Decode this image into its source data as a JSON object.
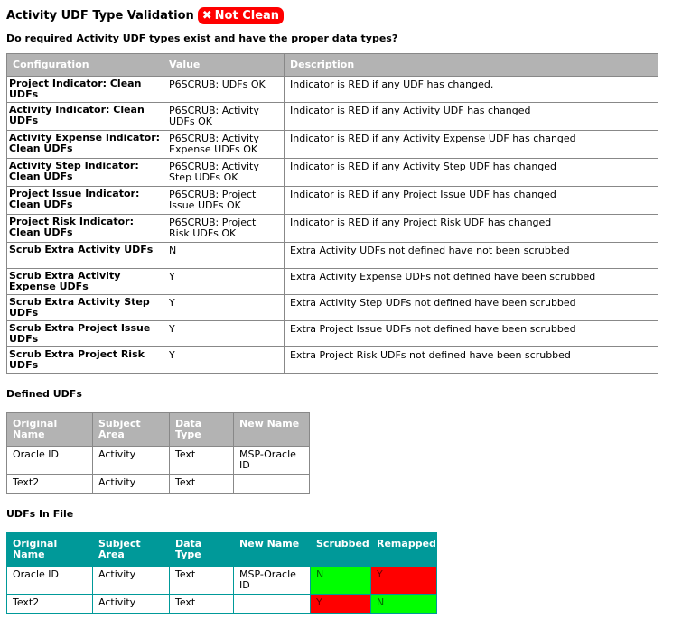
{
  "title": "Activity UDF Type Validation",
  "status_badge": {
    "icon": "x-icon",
    "label": "Not Clean",
    "color": "#ff0000"
  },
  "question": "Do required Activity UDF types exist and have the proper data types?",
  "config_table": {
    "headers": [
      "Configuration",
      "Value",
      "Description"
    ],
    "rows": [
      [
        "Project Indicator: Clean UDFs",
        "P6SCRUB: UDFs OK",
        "Indicator is RED if any UDF has changed."
      ],
      [
        "Activity Indicator: Clean UDFs",
        "P6SCRUB: Activity UDFs OK",
        "Indicator is RED if any Activity UDF has changed"
      ],
      [
        "Activity Expense Indicator: Clean UDFs",
        "P6SCRUB: Activity Expense UDFs OK",
        "Indicator is RED if any Activity Expense UDF has changed"
      ],
      [
        "Activity Step Indicator: Clean UDFs",
        "P6SCRUB: Activity Step UDFs OK",
        "Indicator is RED if any Activity Step UDF has changed"
      ],
      [
        "Project Issue Indicator: Clean UDFs",
        "P6SCRUB: Project Issue UDFs OK",
        "Indicator is RED if any Project Issue UDF has changed"
      ],
      [
        "Project Risk Indicator: Clean UDFs",
        "P6SCRUB: Project Risk UDFs OK",
        "Indicator is RED if any Project Risk UDF has changed"
      ],
      [
        "Scrub Extra Activity UDFs",
        "N",
        "Extra Activity UDFs not defined have not been scrubbed"
      ],
      [
        "Scrub Extra Activity Expense UDFs",
        "Y",
        "Extra Activity Expense UDFs not defined have been scrubbed"
      ],
      [
        "Scrub Extra Activity Step UDFs",
        "Y",
        "Extra Activity Step UDFs not defined have been scrubbed"
      ],
      [
        "Scrub Extra Project Issue UDFs",
        "Y",
        "Extra Project Issue UDFs not defined have been scrubbed"
      ],
      [
        "Scrub Extra Project Risk UDFs",
        "Y",
        "Extra Project Risk UDFs not defined have been scrubbed"
      ]
    ]
  },
  "defined_udfs": {
    "heading": "Defined UDFs",
    "headers": [
      "Original Name",
      "Subject Area",
      "Data Type",
      "New Name"
    ],
    "rows": [
      [
        "Oracle ID",
        "Activity",
        "Text",
        "MSP-Oracle ID"
      ],
      [
        "Text2",
        "Activity",
        "Text",
        ""
      ]
    ]
  },
  "udfs_in_file": {
    "heading": "UDFs In File",
    "headers": [
      "Original Name",
      "Subject Area",
      "Data Type",
      "New Name",
      "Scrubbed",
      "Remapped"
    ],
    "rows": [
      [
        "Oracle ID",
        "Activity",
        "Text",
        "MSP-Oracle ID",
        "N",
        "Y"
      ],
      [
        "Text2",
        "Activity",
        "Text",
        "",
        "Y",
        "N"
      ]
    ],
    "colors": {
      "Y": "#ff0000",
      "N": "#00ff00",
      "header": "#009999"
    }
  }
}
